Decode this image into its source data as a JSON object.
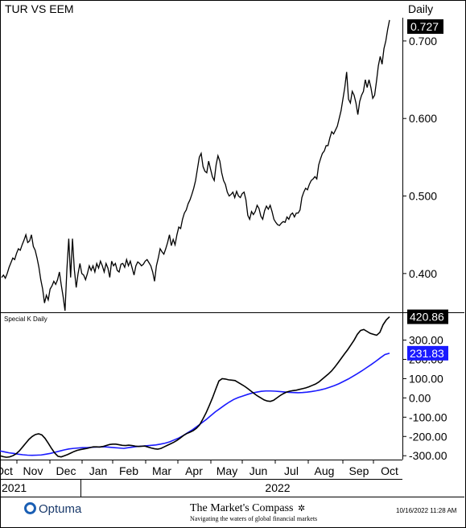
{
  "header": {
    "title": "TUR VS EEM",
    "period": "Daily"
  },
  "indicator": {
    "title": "Special K Daily"
  },
  "footer": {
    "brand": "Optuma",
    "publisher": "The Market's Compass",
    "tagline": "Navigating the waters of global financial markets",
    "timestamp": "10/16/2022 11:28 AM"
  },
  "x_axis": {
    "month_labels": [
      "Oct",
      "Nov",
      "Dec",
      "Jan",
      "Feb",
      "Mar",
      "Apr",
      "May",
      "Jun",
      "Jul",
      "Aug",
      "Sep",
      "Oct"
    ],
    "year_labels": [
      "2021",
      "2022"
    ]
  },
  "colors": {
    "price": "#000000",
    "special_k": "#000000",
    "signal": "#1a1aff",
    "grid": "#d9d9d9"
  },
  "chart_data": [
    {
      "type": "line",
      "title": "TUR VS EEM",
      "ylim": [
        0.35,
        0.73
      ],
      "yticks": [
        0.4,
        0.5,
        0.6,
        0.7
      ],
      "ytick_labels": [
        "0.400",
        "0.500",
        "0.600",
        "0.700"
      ],
      "last_value_label": "0.727",
      "series": [
        {
          "values": [
            0.395,
            0.398,
            0.394,
            0.4,
            0.408,
            0.414,
            0.42,
            0.418,
            0.426,
            0.432,
            0.43,
            0.437,
            0.443,
            0.45,
            0.44,
            0.442,
            0.45,
            0.435,
            0.43,
            0.42,
            0.408,
            0.392,
            0.38,
            0.362,
            0.372,
            0.366,
            0.38,
            0.384,
            0.39,
            0.386,
            0.392,
            0.402,
            0.385,
            0.37,
            0.352,
            0.405,
            0.445,
            0.395,
            0.445,
            0.405,
            0.382,
            0.4,
            0.413,
            0.4,
            0.398,
            0.392,
            0.4,
            0.41,
            0.404,
            0.41,
            0.402,
            0.413,
            0.407,
            0.416,
            0.41,
            0.402,
            0.413,
            0.407,
            0.395,
            0.416,
            0.41,
            0.413,
            0.404,
            0.402,
            0.412,
            0.413,
            0.408,
            0.418,
            0.41,
            0.416,
            0.407,
            0.398,
            0.41,
            0.415,
            0.413,
            0.41,
            0.412,
            0.416,
            0.418,
            0.414,
            0.41,
            0.402,
            0.39,
            0.41,
            0.42,
            0.432,
            0.428,
            0.425,
            0.432,
            0.44,
            0.45,
            0.436,
            0.444,
            0.437,
            0.45,
            0.46,
            0.458,
            0.47,
            0.478,
            0.482,
            0.49,
            0.495,
            0.502,
            0.51,
            0.52,
            0.535,
            0.55,
            0.555,
            0.538,
            0.532,
            0.53,
            0.545,
            0.535,
            0.525,
            0.52,
            0.54,
            0.552,
            0.545,
            0.53,
            0.52,
            0.515,
            0.505,
            0.5,
            0.502,
            0.505,
            0.498,
            0.506,
            0.5,
            0.498,
            0.503,
            0.505,
            0.495,
            0.475,
            0.47,
            0.48,
            0.476,
            0.48,
            0.488,
            0.484,
            0.474,
            0.47,
            0.481,
            0.487,
            0.483,
            0.488,
            0.48,
            0.47,
            0.466,
            0.463,
            0.462,
            0.465,
            0.467,
            0.466,
            0.473,
            0.47,
            0.476,
            0.478,
            0.473,
            0.478,
            0.478,
            0.482,
            0.498,
            0.505,
            0.51,
            0.508,
            0.515,
            0.52,
            0.522,
            0.525,
            0.522,
            0.54,
            0.548,
            0.555,
            0.558,
            0.565,
            0.565,
            0.575,
            0.583,
            0.58,
            0.585,
            0.59,
            0.6,
            0.61,
            0.625,
            0.64,
            0.66,
            0.625,
            0.62,
            0.635,
            0.63,
            0.62,
            0.605,
            0.622,
            0.63,
            0.635,
            0.65,
            0.64,
            0.65,
            0.64,
            0.626,
            0.63,
            0.648,
            0.668,
            0.68,
            0.67,
            0.69,
            0.7,
            0.715,
            0.727
          ]
        }
      ]
    },
    {
      "type": "line",
      "title": "Special K Daily",
      "ylim": [
        -320,
        440
      ],
      "yticks": [
        -300,
        -200,
        -100,
        0,
        100,
        200,
        300
      ],
      "ytick_labels": [
        "-300.00",
        "-200.00",
        "-100.00",
        "0.00",
        "100.00",
        "200.00",
        "300.00"
      ],
      "series": [
        {
          "name": "Special K",
          "last_value_label": "420.86",
          "values": [
            -300,
            -305,
            -308,
            -306,
            -300,
            -290,
            -275,
            -255,
            -235,
            -215,
            -200,
            -190,
            -186,
            -192,
            -210,
            -235,
            -262,
            -286,
            -303,
            -306,
            -300,
            -294,
            -286,
            -278,
            -272,
            -268,
            -265,
            -262,
            -258,
            -254,
            -254,
            -255,
            -252,
            -247,
            -242,
            -240,
            -240,
            -243,
            -246,
            -247,
            -245,
            -247,
            -250,
            -252,
            -251,
            -250,
            -255,
            -260,
            -264,
            -266,
            -262,
            -254,
            -246,
            -238,
            -230,
            -220,
            -208,
            -195,
            -185,
            -178,
            -170,
            -158,
            -140,
            -110,
            -78,
            -40,
            0,
            45,
            88,
            100,
            98,
            94,
            92,
            90,
            80,
            70,
            60,
            48,
            35,
            22,
            10,
            0,
            -10,
            -16,
            -18,
            -12,
            0,
            12,
            22,
            30,
            35,
            38,
            40,
            44,
            48,
            52,
            58,
            65,
            72,
            82,
            96,
            110,
            124,
            140,
            160,
            182,
            205,
            228,
            250,
            275,
            300,
            330,
            350,
            355,
            345,
            335,
            330,
            325,
            340,
            380,
            405,
            420.86
          ]
        },
        {
          "name": "Signal",
          "last_value_label": "231.83",
          "values": [
            -275,
            -280,
            -285,
            -288,
            -292,
            -295,
            -297,
            -298,
            -297,
            -296,
            -292,
            -288,
            -282,
            -276,
            -270,
            -265,
            -262,
            -260,
            -258,
            -258,
            -256,
            -255,
            -254,
            -254,
            -256,
            -258,
            -260,
            -262,
            -258,
            -255,
            -252,
            -250,
            -248,
            -246,
            -244,
            -240,
            -235,
            -228,
            -218,
            -208,
            -195,
            -180,
            -165,
            -148,
            -130,
            -112,
            -92,
            -72,
            -55,
            -38,
            -22,
            -8,
            2,
            10,
            18,
            25,
            30,
            34,
            36,
            36,
            35,
            33,
            31,
            29,
            28,
            27,
            28,
            30,
            33,
            37,
            42,
            48,
            56,
            64,
            74,
            86,
            98,
            112,
            126,
            141,
            157,
            173,
            190,
            208,
            225,
            231.83
          ]
        }
      ]
    }
  ]
}
